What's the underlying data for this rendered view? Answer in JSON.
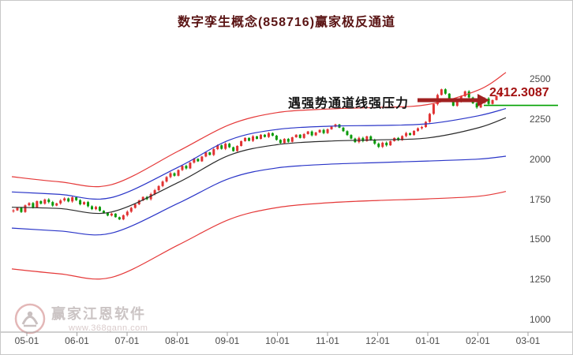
{
  "title": "数字孪生概念(858716)赢家极反通道",
  "annotation": {
    "text": "遇强势通道线强压力"
  },
  "price_label": "2412.3087",
  "watermark": {
    "name": "赢家江恩软件",
    "url": "www.368gann.com"
  },
  "colors": {
    "candle_up": "#e13232",
    "candle_down": "#0a9a0a",
    "rail_red": "#e53939",
    "rail_blue": "#2a35c8",
    "life_black": "#2b2b2b",
    "marker_green": "#00a000",
    "arrow": "#a02020",
    "axis": "#a0a0a0"
  },
  "chart_data": {
    "type": "candlestick",
    "title": "数字孪生概念(858716)赢家极反通道",
    "ylim": [
      1000,
      2500
    ],
    "y_ticks": [
      "2500",
      "2250",
      "2000",
      "1750",
      "1500",
      "1250",
      "1000"
    ],
    "x_ticks": [
      "05-01",
      "06-01",
      "07-01",
      "08-01",
      "09-01",
      "10-01",
      "11-01",
      "12-01",
      "01-01",
      "02-01",
      "03-01"
    ],
    "last_price": 2412.3087,
    "green_marker_value": 2335,
    "closes": [
      1680,
      1696,
      1670,
      1712,
      1726,
      1698,
      1738,
      1722,
      1748,
      1732,
      1710,
      1724,
      1742,
      1755,
      1736,
      1762,
      1744,
      1718,
      1732,
      1706,
      1688,
      1702,
      1678,
      1664,
      1648,
      1660,
      1638,
      1624,
      1650,
      1672,
      1696,
      1718,
      1742,
      1764,
      1750,
      1782,
      1806,
      1832,
      1860,
      1888,
      1912,
      1896,
      1932,
      1958,
      1942,
      1978,
      2002,
      1986,
      2016,
      2042,
      2026,
      2062,
      2086,
      2064,
      2096,
      2074,
      2050,
      2082,
      2112,
      2132,
      2114,
      2142,
      2126,
      2152,
      2138,
      2162,
      2146,
      2120,
      2100,
      2126,
      2108,
      2136,
      2152,
      2132,
      2156,
      2172,
      2148,
      2166,
      2182,
      2162,
      2186,
      2202,
      2216,
      2196,
      2174,
      2150,
      2128,
      2106,
      2132,
      2112,
      2142,
      2120,
      2096,
      2076,
      2102,
      2086,
      2112,
      2132,
      2118,
      2144,
      2162,
      2150,
      2176,
      2192,
      2200,
      2232,
      2282,
      2342,
      2400,
      2435,
      2408,
      2368,
      2332,
      2358,
      2392,
      2422,
      2384,
      2348,
      2322,
      2352,
      2378,
      2344,
      2368,
      2394,
      2412.31
    ],
    "channel": {
      "t": [
        0,
        0.097,
        0.201,
        0.337,
        0.441,
        0.537,
        0.641,
        0.741,
        0.842,
        0.944,
        1
      ],
      "lines": [
        {
          "name": "upper-rail-red",
          "color": "#e53939",
          "values": [
            1890,
            1858,
            1840,
            2050,
            2215,
            2290,
            2312,
            2322,
            2340,
            2430,
            2540
          ]
        },
        {
          "name": "upper-rail-blue",
          "color": "#2a35c8",
          "values": [
            1795,
            1780,
            1760,
            1950,
            2120,
            2185,
            2205,
            2210,
            2220,
            2270,
            2315
          ]
        },
        {
          "name": "life-line-black",
          "color": "#2b2b2b",
          "values": [
            1700,
            1692,
            1670,
            1855,
            2025,
            2090,
            2112,
            2120,
            2132,
            2195,
            2258
          ]
        },
        {
          "name": "lower-rail-blue",
          "color": "#2a35c8",
          "values": [
            1570,
            1552,
            1538,
            1725,
            1880,
            1945,
            1968,
            1978,
            1988,
            2000,
            2018
          ]
        },
        {
          "name": "lower-rail-red",
          "color": "#e53939",
          "values": [
            1315,
            1285,
            1262,
            1465,
            1625,
            1698,
            1728,
            1742,
            1752,
            1768,
            1798
          ]
        }
      ]
    }
  }
}
